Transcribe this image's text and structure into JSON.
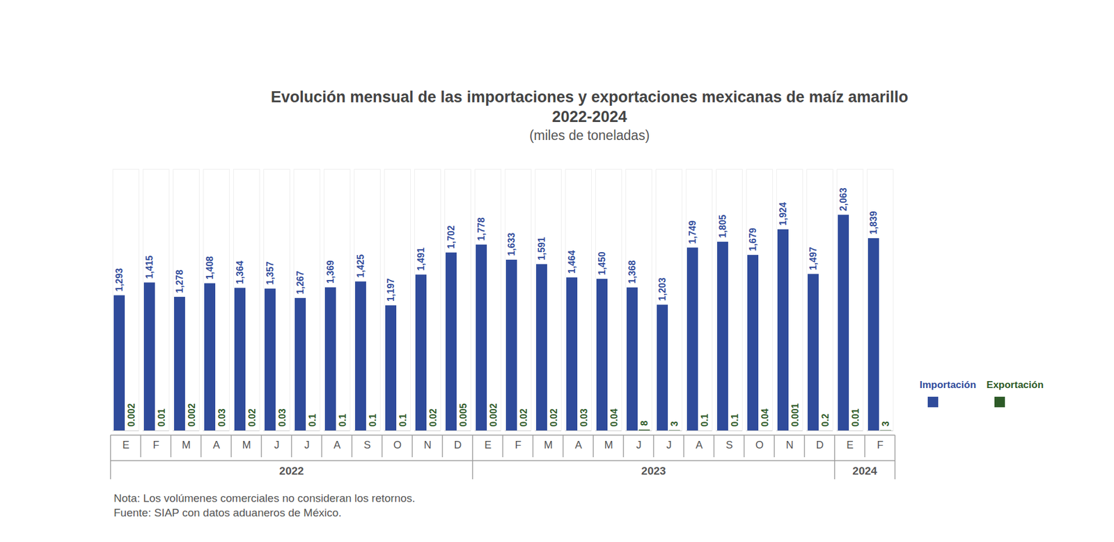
{
  "chart_data": {
    "type": "bar",
    "title": "Evolución mensual de las importaciones y exportaciones mexicanas de maíz amarillo 2022-2024",
    "subtitle": "(miles de toneladas)",
    "categories": [
      "E",
      "F",
      "M",
      "A",
      "M",
      "J",
      "J",
      "A",
      "S",
      "O",
      "N",
      "D",
      "E",
      "F",
      "M",
      "A",
      "M",
      "J",
      "J",
      "A",
      "S",
      "O",
      "N",
      "D",
      "E",
      "F"
    ],
    "groups": [
      {
        "label": "2022",
        "count": 12
      },
      {
        "label": "2023",
        "count": 12
      },
      {
        "label": "2024",
        "count": 2
      }
    ],
    "series": [
      {
        "name": "Importación",
        "color": "#2f4b9b",
        "values": [
          1293,
          1415,
          1278,
          1408,
          1364,
          1357,
          1267,
          1369,
          1425,
          1197,
          1491,
          1702,
          1778,
          1633,
          1591,
          1464,
          1450,
          1368,
          1203,
          1749,
          1805,
          1679,
          1924,
          1497,
          2063,
          1839
        ],
        "value_labels": [
          "1,293",
          "1,415",
          "1,278",
          "1,408",
          "1,364",
          "1,357",
          "1,267",
          "1,369",
          "1,425",
          "1,197",
          "1,491",
          "1,702",
          "1,778",
          "1,633",
          "1,591",
          "1,464",
          "1,450",
          "1,368",
          "1,203",
          "1,749",
          "1,805",
          "1,679",
          "1,924",
          "1,497",
          "2,063",
          "1,839"
        ]
      },
      {
        "name": "Exportación",
        "color": "#2d5a27",
        "values": [
          0.002,
          0.01,
          0.002,
          0.03,
          0.02,
          0.03,
          0.1,
          0.1,
          0.1,
          0.1,
          0.02,
          0.005,
          0.002,
          0.02,
          0.02,
          0.03,
          0.04,
          8,
          3,
          0.1,
          0.1,
          0.04,
          0.001,
          0.2,
          0.01,
          3
        ]
      }
    ],
    "ylim": [
      0,
      2500
    ],
    "yticks": [],
    "tick_labels": "x",
    "data_labels": true,
    "legend": "right",
    "grid": false,
    "notes": [
      "Nota: Los volúmenes comerciales no consideran los retornos.",
      "Fuente: SIAP con datos aduaneros de México."
    ]
  }
}
